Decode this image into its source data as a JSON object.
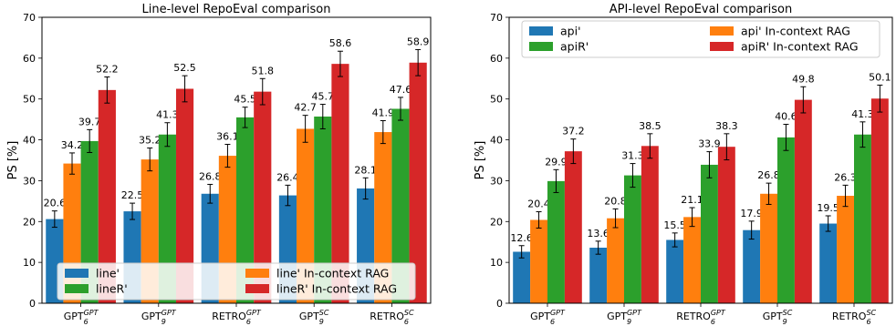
{
  "chart_data": [
    {
      "type": "bar",
      "title": "Line-level RepoEval comparison",
      "xlabel": "",
      "ylabel": "PS [%]",
      "ylim": [
        0,
        70
      ],
      "yticks": [
        0,
        10,
        20,
        30,
        40,
        50,
        60,
        70
      ],
      "grid": false,
      "legend": {
        "placement": "lower-center",
        "columns": 2
      },
      "categories": [
        {
          "base": "GPT",
          "sub": "6",
          "sup": "GPT"
        },
        {
          "base": "GPT",
          "sub": "9",
          "sup": "GPT"
        },
        {
          "base": "RETRO",
          "sub": "6",
          "sup": "GPT"
        },
        {
          "base": "GPT",
          "sub": "9",
          "sup": "SC"
        },
        {
          "base": "RETRO",
          "sub": "6",
          "sup": "SC"
        }
      ],
      "series": [
        {
          "name": "line'",
          "color": "#1f77b4",
          "values": [
            20.6,
            22.5,
            26.8,
            26.4,
            28.1
          ],
          "errors": [
            2.0,
            2.0,
            2.3,
            2.5,
            2.6
          ]
        },
        {
          "name": "line' In-context RAG",
          "color": "#ff7f0e",
          "values": [
            34.2,
            35.2,
            36.1,
            42.7,
            41.9
          ],
          "errors": [
            2.6,
            2.8,
            2.8,
            3.3,
            2.8
          ]
        },
        {
          "name": "lineR'",
          "color": "#2ca02c",
          "values": [
            39.7,
            41.3,
            45.5,
            45.7,
            47.6
          ],
          "errors": [
            2.8,
            2.9,
            2.5,
            3.0,
            2.8
          ]
        },
        {
          "name": "lineR' In-context RAG",
          "color": "#d62728",
          "values": [
            52.2,
            52.5,
            51.8,
            58.6,
            58.9
          ],
          "errors": [
            3.2,
            3.2,
            3.2,
            3.1,
            3.2
          ]
        }
      ]
    },
    {
      "type": "bar",
      "title": "API-level RepoEval comparison",
      "xlabel": "",
      "ylabel": "PS [%]",
      "ylim": [
        0,
        70
      ],
      "yticks": [
        0,
        10,
        20,
        30,
        40,
        50,
        60,
        70
      ],
      "grid": false,
      "legend": {
        "placement": "upper-center",
        "columns": 2
      },
      "categories": [
        {
          "base": "GPT",
          "sub": "6",
          "sup": "GPT"
        },
        {
          "base": "GPT",
          "sub": "9",
          "sup": "GPT"
        },
        {
          "base": "RETRO",
          "sub": "6",
          "sup": "GPT"
        },
        {
          "base": "GPT",
          "sub": "9",
          "sup": "SC"
        },
        {
          "base": "RETRO",
          "sub": "6",
          "sup": "SC"
        }
      ],
      "series": [
        {
          "name": "api'",
          "color": "#1f77b4",
          "values": [
            12.6,
            13.6,
            15.5,
            17.9,
            19.5
          ],
          "errors": [
            1.5,
            1.6,
            1.7,
            2.2,
            1.9
          ]
        },
        {
          "name": "api' In-context RAG",
          "color": "#ff7f0e",
          "values": [
            20.4,
            20.8,
            21.1,
            26.8,
            26.3
          ],
          "errors": [
            2.0,
            2.3,
            2.3,
            2.6,
            2.6
          ]
        },
        {
          "name": "apiR'",
          "color": "#2ca02c",
          "values": [
            29.9,
            31.3,
            33.9,
            40.6,
            41.3
          ],
          "errors": [
            2.8,
            2.9,
            3.2,
            3.2,
            3.1
          ]
        },
        {
          "name": "apiR' In-context RAG",
          "color": "#d62728",
          "values": [
            37.2,
            38.5,
            38.3,
            49.8,
            50.1
          ],
          "errors": [
            3.0,
            3.0,
            3.2,
            3.2,
            3.3
          ]
        }
      ]
    }
  ]
}
